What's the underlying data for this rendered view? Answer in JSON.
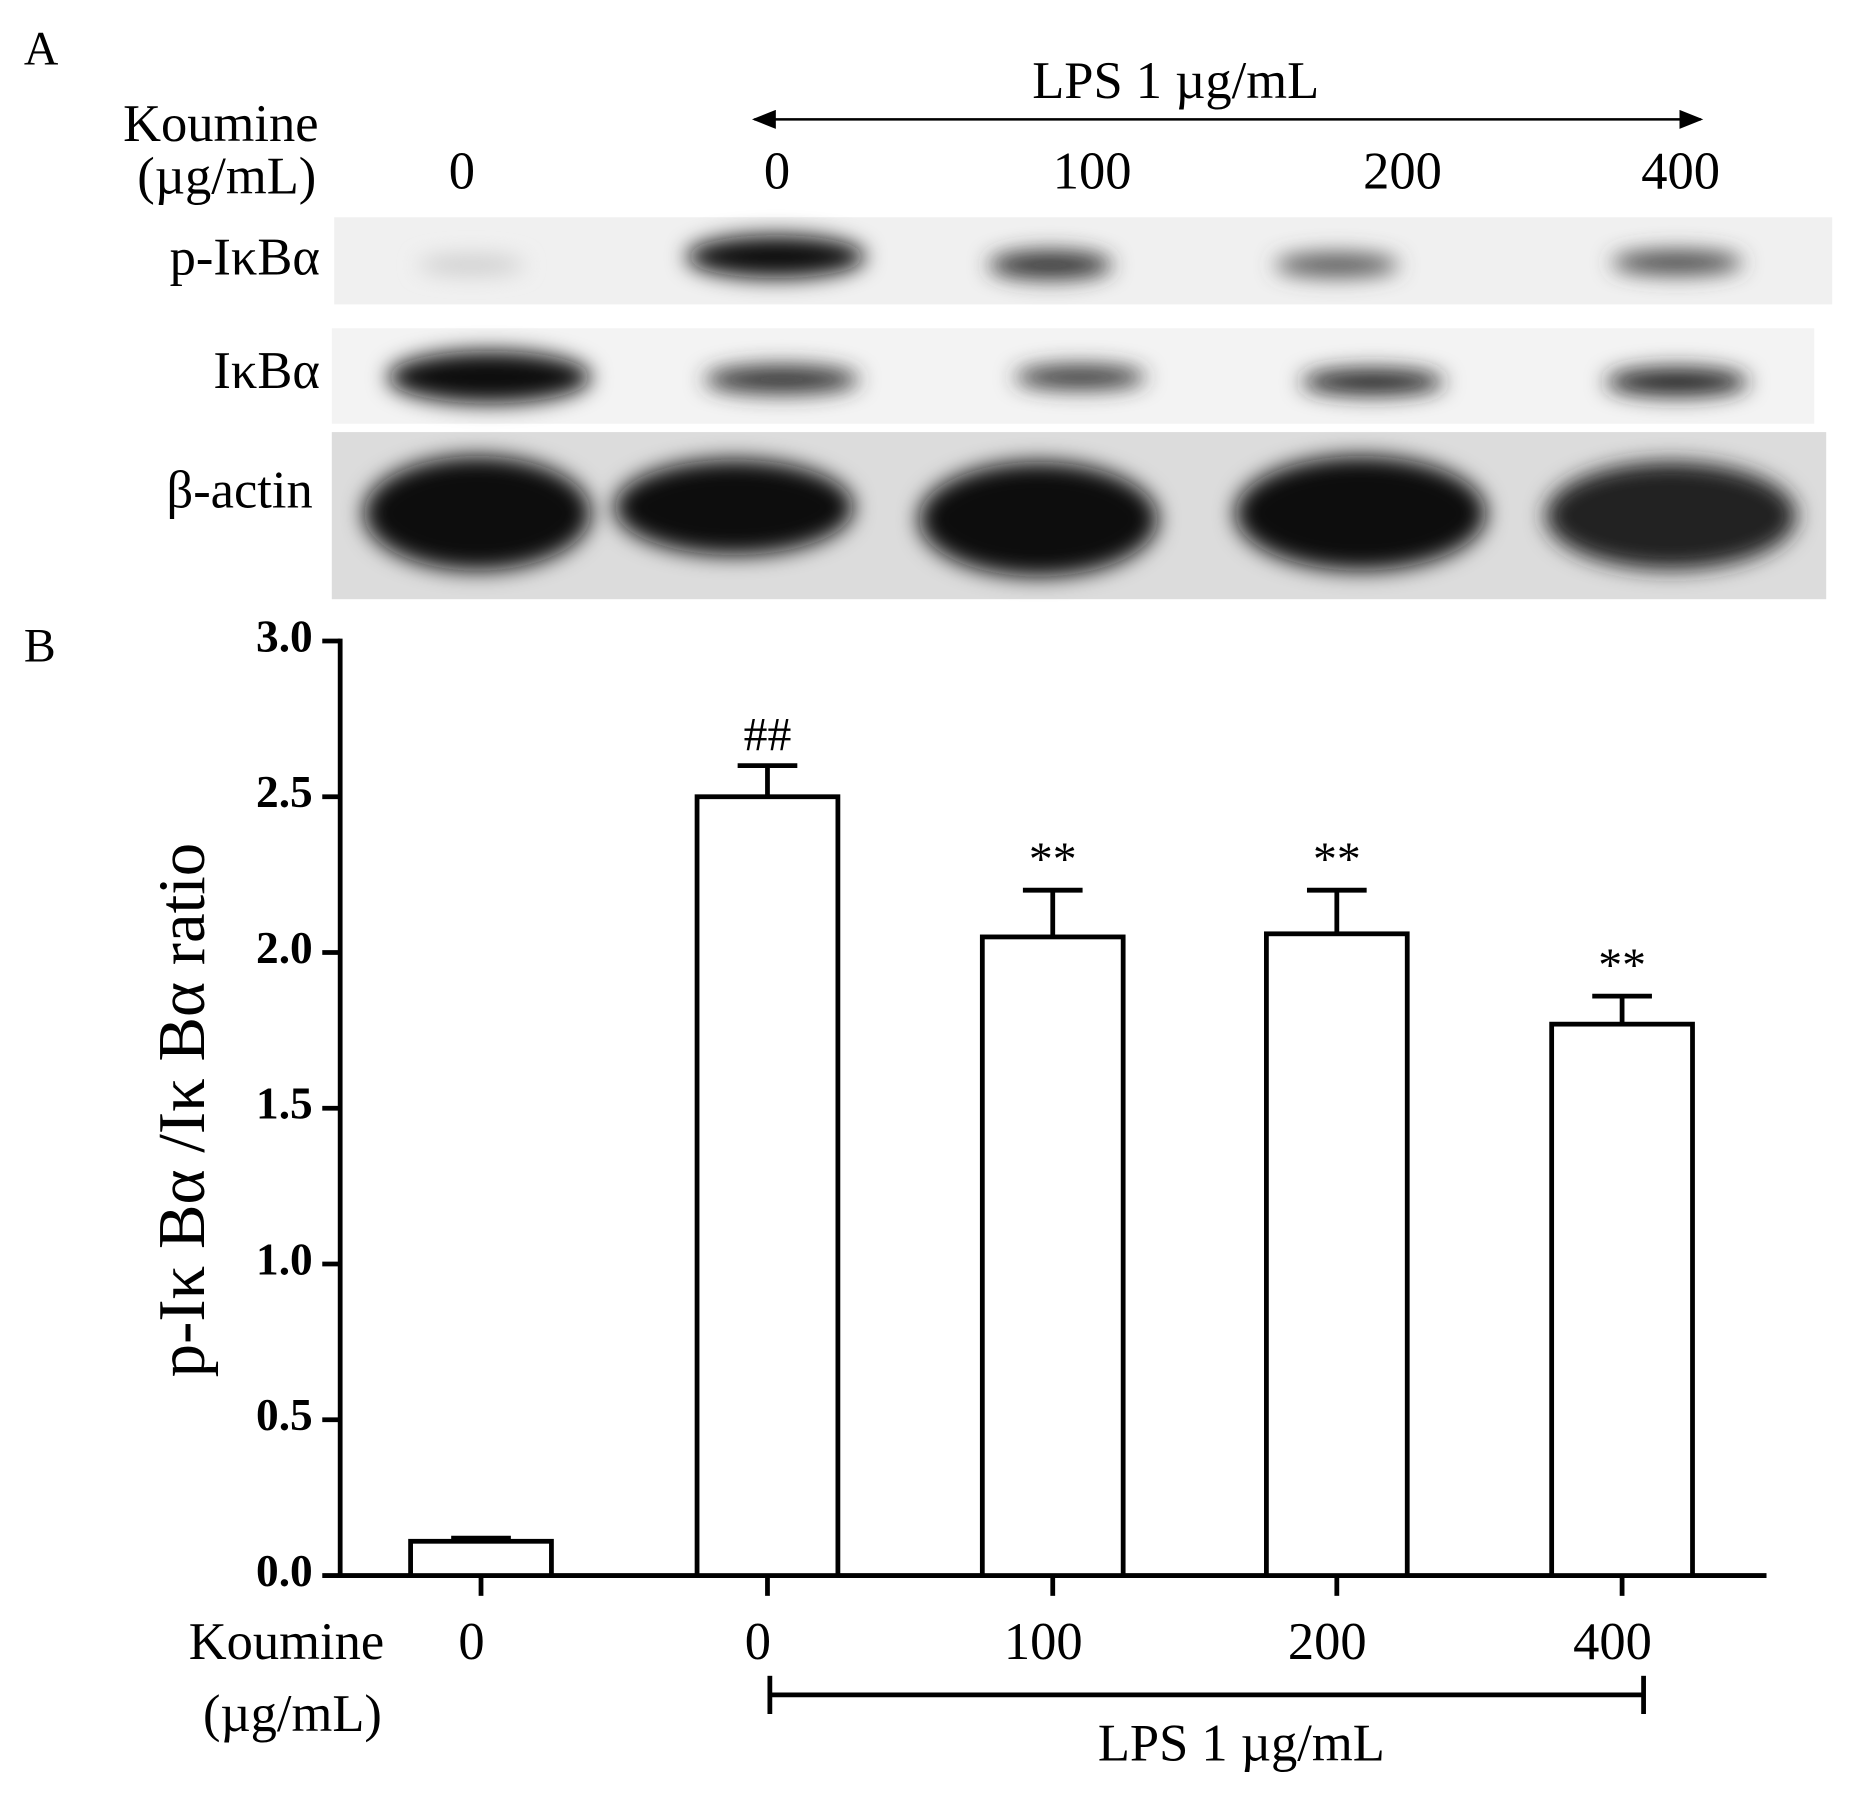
{
  "panel_a": {
    "label": "A",
    "lps_label": "LPS 1 µg/mL",
    "koumine_label": [
      "Koumine",
      "(µg/mL)"
    ],
    "lanes": [
      "0",
      "0",
      "100",
      "200",
      "400"
    ],
    "rows": [
      "p-IκBα",
      "IκBα",
      "β-actin"
    ]
  },
  "chart_data": {
    "type": "bar",
    "panel_label": "B",
    "ylabel": "p-Iκ Bα /Iκ Bα  ratio",
    "categories": [
      "0",
      "0",
      "100",
      "200",
      "400"
    ],
    "values": [
      0.11,
      2.5,
      2.05,
      2.06,
      1.77
    ],
    "errors": [
      0.01,
      0.1,
      0.15,
      0.14,
      0.09
    ],
    "significance": [
      null,
      "##",
      "**",
      "**",
      "**"
    ],
    "xlabel": [
      "Koumine",
      "(µg/mL)"
    ],
    "group_label": "LPS 1 µg/mL",
    "ylim": [
      0,
      3
    ],
    "yticks": [
      {
        "value": 0,
        "label": "0.0"
      },
      0.5,
      {
        "value": 1,
        "label": "1.0"
      },
      1.5,
      {
        "value": 2,
        "label": "2.0"
      },
      2.5,
      {
        "value": 3,
        "label": "3.0"
      }
    ],
    "color": "#ffffff"
  }
}
